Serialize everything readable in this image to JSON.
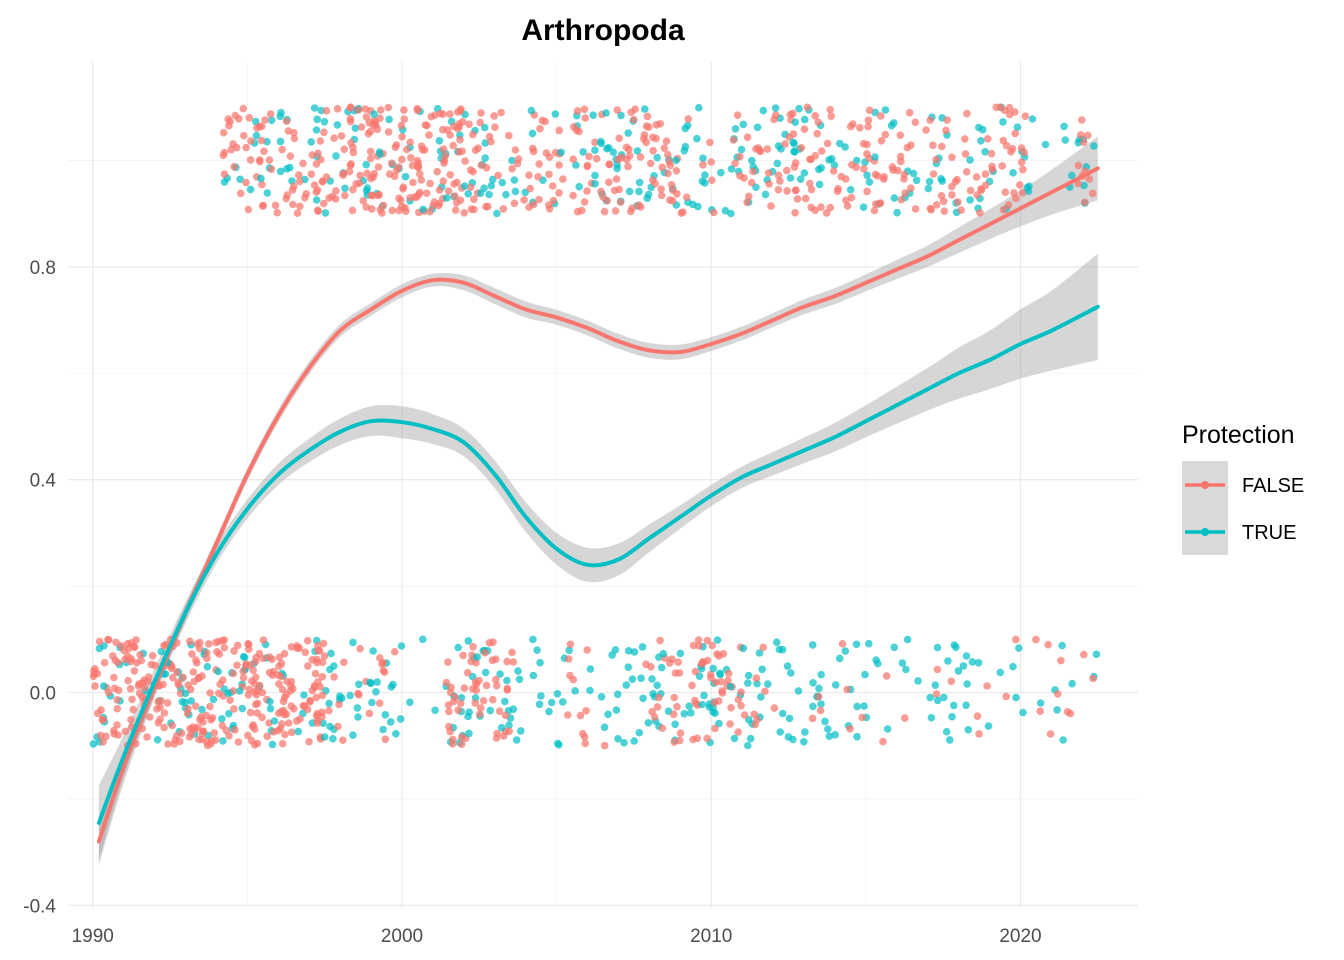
{
  "chart_data": {
    "type": "scatter",
    "title": "Arthropoda",
    "xlabel": "",
    "ylabel": "",
    "xlim": [
      1989.2,
      2023.8
    ],
    "ylim": [
      -0.405,
      1.185
    ],
    "x_ticks": [
      1990,
      2000,
      2010,
      2020
    ],
    "x_tick_labels": [
      "1990",
      "2000",
      "2010",
      "2020"
    ],
    "y_ticks": [
      -0.4,
      0.0,
      0.4,
      0.8
    ],
    "y_tick_labels": [
      "-0.4",
      "0.0",
      "0.4",
      "0.8"
    ],
    "grid": true,
    "legend": {
      "title": "Protection",
      "position": "right",
      "entries": [
        "FALSE",
        "TRUE"
      ]
    },
    "colors": {
      "FALSE": "#F8766D",
      "TRUE": "#00BFC4",
      "ribbon": "#999999"
    },
    "points": {
      "description": "jittered binary outcomes (0/1) per year, jitter ±0.1",
      "FALSE": {
        "x_range": [
          1990.0,
          2022.5
        ],
        "y_levels": [
          0,
          1
        ]
      },
      "TRUE": {
        "x_range": [
          1990.0,
          2022.5
        ],
        "y_levels": [
          0,
          1
        ]
      }
    },
    "series": [
      {
        "name": "FALSE",
        "x": [
          1990.2,
          1991,
          1992,
          1993,
          1994,
          1995,
          1996,
          1997,
          1998,
          1999,
          2000,
          2001,
          2002,
          2003,
          2004,
          2005,
          2006,
          2007,
          2008,
          2009,
          2010,
          2011,
          2012,
          2013,
          2014,
          2015,
          2016,
          2017,
          2018,
          2019,
          2020,
          2021,
          2022.5
        ],
        "y": [
          -0.28,
          -0.14,
          0.01,
          0.15,
          0.28,
          0.41,
          0.52,
          0.61,
          0.68,
          0.72,
          0.755,
          0.775,
          0.77,
          0.745,
          0.72,
          0.705,
          0.685,
          0.66,
          0.643,
          0.64,
          0.655,
          0.675,
          0.7,
          0.725,
          0.745,
          0.77,
          0.795,
          0.82,
          0.85,
          0.88,
          0.91,
          0.94,
          0.985
        ],
        "ci_halfwidth": [
          0.045,
          0.03,
          0.02,
          0.015,
          0.012,
          0.012,
          0.012,
          0.012,
          0.012,
          0.012,
          0.012,
          0.012,
          0.014,
          0.015,
          0.015,
          0.014,
          0.014,
          0.014,
          0.014,
          0.014,
          0.013,
          0.013,
          0.013,
          0.014,
          0.015,
          0.016,
          0.018,
          0.02,
          0.024,
          0.028,
          0.034,
          0.042,
          0.06
        ]
      },
      {
        "name": "TRUE",
        "x": [
          1990.2,
          1991,
          1992,
          1993,
          1994,
          1995,
          1996,
          1997,
          1998,
          1999,
          2000,
          2001,
          2002,
          2003,
          2004,
          2005,
          2006,
          2007,
          2008,
          2009,
          2010,
          2011,
          2012,
          2013,
          2014,
          2015,
          2016,
          2017,
          2018,
          2019,
          2020,
          2021,
          2022.5
        ],
        "y": [
          -0.245,
          -0.12,
          0.02,
          0.15,
          0.26,
          0.345,
          0.41,
          0.455,
          0.49,
          0.51,
          0.508,
          0.495,
          0.47,
          0.41,
          0.33,
          0.27,
          0.24,
          0.25,
          0.29,
          0.33,
          0.37,
          0.405,
          0.43,
          0.455,
          0.48,
          0.51,
          0.54,
          0.57,
          0.6,
          0.625,
          0.655,
          0.68,
          0.725
        ],
        "ci_halfwidth": [
          0.07,
          0.04,
          0.025,
          0.02,
          0.018,
          0.018,
          0.02,
          0.022,
          0.025,
          0.028,
          0.03,
          0.028,
          0.026,
          0.026,
          0.028,
          0.03,
          0.032,
          0.03,
          0.026,
          0.022,
          0.02,
          0.02,
          0.022,
          0.024,
          0.027,
          0.03,
          0.035,
          0.04,
          0.048,
          0.055,
          0.065,
          0.075,
          0.1
        ]
      }
    ]
  }
}
